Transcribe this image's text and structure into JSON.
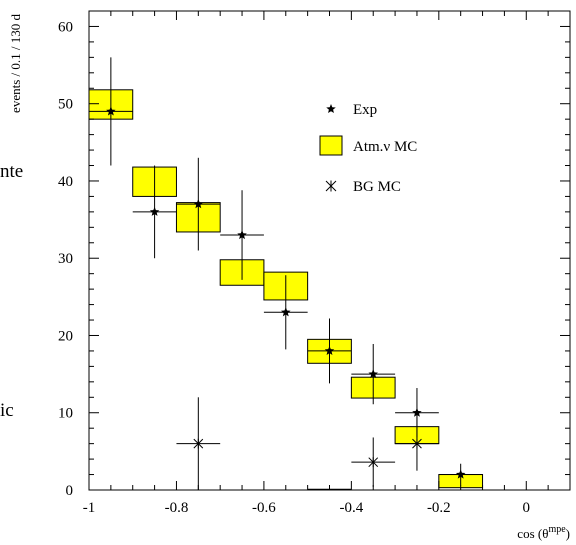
{
  "chart_data": {
    "type": "bar",
    "xlabel_main": "cos (θ",
    "xlabel_sup": "mpe",
    "xlabel_close": ")",
    "ylabel": "events / 0.1 / 130 d",
    "xlim": [
      -1,
      0.1
    ],
    "ylim": [
      0,
      62
    ],
    "x_ticks": [
      -1,
      -0.8,
      -0.6,
      -0.4,
      -0.2,
      0
    ],
    "x_tick_labels": [
      "-1",
      "-0.8",
      "-0.6",
      "-0.4",
      "-0.2",
      "0"
    ],
    "y_ticks": [
      0,
      10,
      20,
      30,
      40,
      50,
      60
    ],
    "y_tick_labels": [
      "0",
      "10",
      "20",
      "30",
      "40",
      "50",
      "60"
    ],
    "colors": {
      "mc_fill": "#ffff00",
      "ink": "#000000"
    },
    "series": [
      {
        "name": "Exp",
        "marker": "star",
        "points": [
          {
            "x": -0.95,
            "y": 49,
            "err": 7
          },
          {
            "x": -0.85,
            "y": 36,
            "err": 6
          },
          {
            "x": -0.75,
            "y": 37,
            "err": 6
          },
          {
            "x": -0.65,
            "y": 33,
            "err": 5.8
          },
          {
            "x": -0.55,
            "y": 23,
            "err": 4.8
          },
          {
            "x": -0.45,
            "y": 18,
            "err": 4.2
          },
          {
            "x": -0.35,
            "y": 15,
            "err": 3.9
          },
          {
            "x": -0.25,
            "y": 10,
            "err": 3.2
          },
          {
            "x": -0.15,
            "y": 2,
            "err": 1.4
          }
        ]
      },
      {
        "name": "Atm.ν MC",
        "marker": "box",
        "boxes": [
          {
            "x0": -1.0,
            "x1": -0.9,
            "y0": 48,
            "y1": 51.8
          },
          {
            "x0": -0.9,
            "x1": -0.8,
            "y0": 38,
            "y1": 41.8
          },
          {
            "x0": -0.8,
            "x1": -0.7,
            "y0": 33.4,
            "y1": 37.2
          },
          {
            "x0": -0.7,
            "x1": -0.6,
            "y0": 26.5,
            "y1": 29.8
          },
          {
            "x0": -0.6,
            "x1": -0.5,
            "y0": 24.6,
            "y1": 28.2
          },
          {
            "x0": -0.5,
            "x1": -0.4,
            "y0": 16.4,
            "y1": 19.5
          },
          {
            "x0": -0.4,
            "x1": -0.3,
            "y0": 11.9,
            "y1": 14.6
          },
          {
            "x0": -0.3,
            "x1": -0.2,
            "y0": 6.0,
            "y1": 8.2
          },
          {
            "x0": -0.2,
            "x1": -0.1,
            "y0": 0.3,
            "y1": 2.0
          }
        ]
      },
      {
        "name": "BG MC",
        "marker": "asterisk",
        "points": [
          {
            "x": -0.75,
            "y": 6,
            "err": 6,
            "xerr": 0.05
          },
          {
            "x": -0.35,
            "y": 3.6,
            "err": 3.2,
            "xerr": 0.05
          },
          {
            "x": -0.25,
            "y": 6,
            "err": 3.5,
            "xerr": 0.05
          }
        ]
      }
    ],
    "legend": {
      "position": "top-right",
      "entries": [
        "Exp",
        "Atm.ν MC",
        "BG MC"
      ]
    },
    "stray_text": [
      "nte",
      "ic"
    ]
  }
}
